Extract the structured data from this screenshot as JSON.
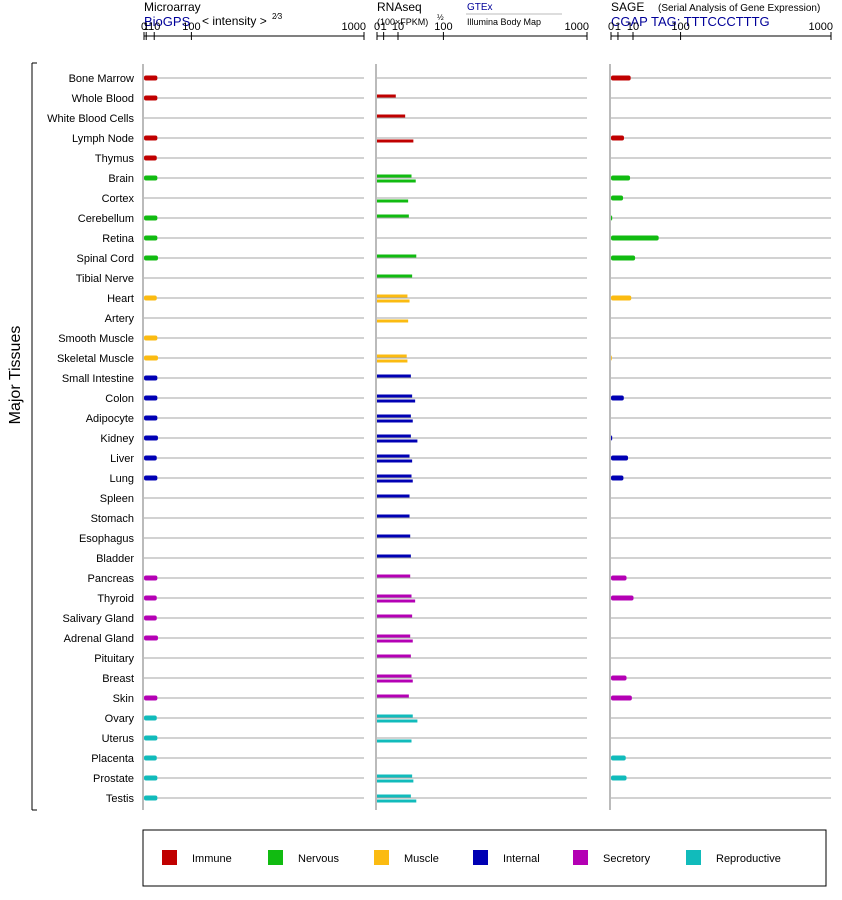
{
  "chart_data": {
    "type": "bar",
    "y_axis_label": "Major Tissues",
    "x_ticks": [
      "0",
      "1",
      "10",
      "100",
      "1000"
    ],
    "tissues": [
      "Bone Marrow",
      "Whole Blood",
      "White Blood Cells",
      "Lymph Node",
      "Thymus",
      "Brain",
      "Cortex",
      "Cerebellum",
      "Retina",
      "Spinal Cord",
      "Tibial Nerve",
      "Heart",
      "Artery",
      "Smooth Muscle",
      "Skeletal Muscle",
      "Small Intestine",
      "Colon",
      "Adipocyte",
      "Kidney",
      "Liver",
      "Lung",
      "Spleen",
      "Stomach",
      "Esophagus",
      "Bladder",
      "Pancreas",
      "Thyroid",
      "Salivary Gland",
      "Adrenal Gland",
      "Pituitary",
      "Breast",
      "Skin",
      "Ovary",
      "Uterus",
      "Placenta",
      "Prostate",
      "Testis"
    ],
    "tissue_groups": [
      "immune",
      "immune",
      "immune",
      "immune",
      "immune",
      "nervous",
      "nervous",
      "nervous",
      "nervous",
      "nervous",
      "nervous",
      "muscle",
      "muscle",
      "muscle",
      "muscle",
      "internal",
      "internal",
      "internal",
      "internal",
      "internal",
      "internal",
      "internal",
      "internal",
      "internal",
      "internal",
      "secretory",
      "secretory",
      "secretory",
      "secretory",
      "secretory",
      "secretory",
      "secretory",
      "reproductive",
      "reproductive",
      "reproductive",
      "reproductive",
      "reproductive"
    ],
    "panels": [
      {
        "id": "microarray",
        "title": "Microarray",
        "subtitle_link": "BioGPS",
        "subtitle_text": "< intensity >",
        "exponent": "2⁄3",
        "transform_exponent": 0.6667,
        "values": [
          [
            15
          ],
          [
            15
          ],
          [],
          [
            15
          ],
          [
            14
          ],
          [
            15
          ],
          [],
          [
            15
          ],
          [
            15
          ],
          [
            16
          ],
          [],
          [
            14
          ],
          [],
          [
            15
          ],
          [
            16
          ],
          [
            15
          ],
          [
            15
          ],
          [
            15
          ],
          [
            16
          ],
          [
            14
          ],
          [
            15
          ],
          [],
          [],
          [],
          [],
          [
            15
          ],
          [
            14
          ],
          [
            14
          ],
          [
            16
          ],
          [],
          [],
          [
            15
          ],
          [
            14
          ],
          [
            15
          ],
          [
            14
          ],
          [
            15
          ],
          [
            15
          ]
        ]
      },
      {
        "id": "rnaseq",
        "title": "RNAseq",
        "subtitle_text": "(100×FPKM)",
        "exponent": "½",
        "gtex_link": "GTEx",
        "body_map_label": "Illumina Body Map",
        "transform_exponent": 0.5,
        "values": [
          [],
          [
            8
          ],
          [
            18,
            null
          ],
          [
            null,
            30
          ],
          [],
          [
            27,
            34
          ],
          [
            null,
            22
          ],
          [
            23
          ],
          [],
          [
            35,
            null
          ],
          [
            28
          ],
          [
            21,
            24
          ],
          [
            null,
            22
          ],
          [],
          [
            20,
            21
          ],
          [
            26
          ],
          [
            28,
            33
          ],
          [
            26,
            29
          ],
          [
            26,
            37
          ],
          [
            24,
            28
          ],
          [
            27,
            29
          ],
          [
            24
          ],
          [
            24
          ],
          [
            25
          ],
          [
            26
          ],
          [
            25
          ],
          [
            27,
            33
          ],
          [
            28
          ],
          [
            25,
            29
          ],
          [
            26
          ],
          [
            27,
            29
          ],
          [
            23
          ],
          [
            29,
            37
          ],
          [
            null,
            27
          ],
          [],
          [
            28,
            30
          ],
          [
            26,
            35
          ]
        ]
      },
      {
        "id": "sage",
        "title": "SAGE",
        "subtitle_text": "(Serial Analysis of Gene Expression)",
        "tag_label": "CGAP TAG: TTTCCCTTTG",
        "transform_exponent": 0.5,
        "values": [
          [
            8
          ],
          [],
          [],
          [
            3.5
          ],
          [],
          [
            7.5
          ],
          [
            3
          ],
          [
            0.03
          ],
          [
            47
          ],
          [
            12
          ],
          [],
          [
            8.5
          ],
          [],
          [],
          [
            0.01
          ],
          [],
          [
            3.4
          ],
          [],
          [
            0.03
          ],
          [
            6
          ],
          [
            3.2
          ],
          [],
          [],
          [],
          [],
          [
            5
          ],
          [
            10.5
          ],
          [],
          [],
          [],
          [
            5
          ],
          [
            9
          ],
          [],
          [],
          [
            4.5
          ],
          [
            5
          ],
          []
        ]
      }
    ],
    "legend": [
      {
        "key": "immune",
        "label": "Immune",
        "color": "#c00000"
      },
      {
        "key": "nervous",
        "label": "Nervous",
        "color": "#11bb11"
      },
      {
        "key": "muscle",
        "label": "Muscle",
        "color": "#fbbb11"
      },
      {
        "key": "internal",
        "label": "Internal",
        "color": "#0000b4"
      },
      {
        "key": "secretory",
        "label": "Secretory",
        "color": "#b400b4"
      },
      {
        "key": "reproductive",
        "label": "Reproductive",
        "color": "#11bbbb"
      }
    ]
  }
}
